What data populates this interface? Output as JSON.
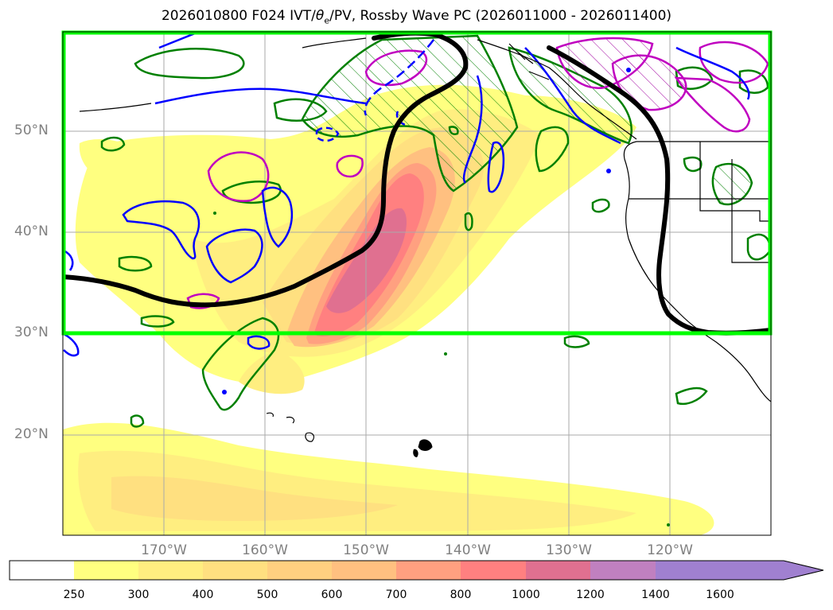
{
  "title": {
    "prefix": "2026010800 F024 IVT/",
    "theta": "θ",
    "theta_sub": "e",
    "suffix": "/PV, Rossby Wave PC (2026011000 - 2026011400)"
  },
  "map": {
    "lat_labels": [
      "50°N",
      "40°N",
      "30°N",
      "20°N"
    ],
    "lon_labels": [
      "170°W",
      "160°W",
      "150°W",
      "140°W",
      "130°W",
      "120°W"
    ],
    "colors": {
      "box": "#00ff00",
      "reference_contour": "#000000",
      "contour_blue": "#0000ff",
      "contour_green": "#008000",
      "contour_magenta": "#c000c0",
      "coast": "#000000",
      "grid": "#aaaaaa"
    }
  },
  "colorbar": {
    "labels": [
      "250",
      "300",
      "400",
      "500",
      "600",
      "700",
      "800",
      "1000",
      "1200",
      "1400",
      "1600"
    ],
    "colors": [
      "#ffffff",
      "#ffff80",
      "#ffee80",
      "#ffe080",
      "#ffd080",
      "#ffc080",
      "#ffa080",
      "#ff8080",
      "#e07090",
      "#c080c0",
      "#a080d0"
    ],
    "extend": "max"
  }
}
